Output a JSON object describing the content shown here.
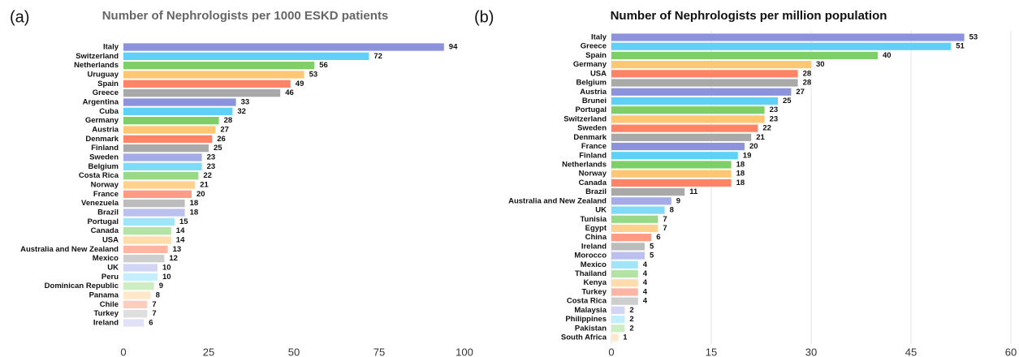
{
  "chart_data": [
    {
      "type": "hbar",
      "label": "(a)",
      "title": "Number of Nephrologists per 1000 ESKD patients",
      "categories": [
        "Italy",
        "Switzerland",
        "Netherlands",
        "Uruguay",
        "Spain",
        "Greece",
        "Argentina",
        "Cuba",
        "Germany",
        "Austria",
        "Denmark",
        "Finland",
        "Sweden",
        "Belgium",
        "Costa Rica",
        "Norway",
        "France",
        "Venezuela",
        "Brazil",
        "Portugal",
        "Canada",
        "USA",
        "Australia and New Zealand",
        "Mexico",
        "UK",
        "Peru",
        "Dominican Republic",
        "Panama",
        "Chile",
        "Turkey",
        "Ireland"
      ],
      "values": [
        94,
        72,
        56,
        53,
        49,
        46,
        33,
        32,
        28,
        27,
        26,
        25,
        23,
        23,
        22,
        21,
        20,
        18,
        18,
        15,
        14,
        14,
        13,
        12,
        10,
        10,
        9,
        8,
        7,
        7,
        6
      ],
      "colors": [
        "#8c93dc",
        "#5fd1f6",
        "#7fcf69",
        "#ffc773",
        "#ff8465",
        "#a9a9a9",
        "#8c93dc",
        "#5fd1f6",
        "#7fcf69",
        "#ffc773",
        "#ff8465",
        "#a9a9a9",
        "#a4abe6",
        "#7fdbf8",
        "#98d987",
        "#ffd18d",
        "#ff9c83",
        "#bcbcbc",
        "#bbc0ee",
        "#a1e5fa",
        "#b3e4a6",
        "#ffdcab",
        "#ffb5a2",
        "#cecece",
        "#d2d5f4",
        "#c3effc",
        "#cdeec3",
        "#ffe8c9",
        "#ffcdc0",
        "#dedede",
        "#dfe1f7"
      ],
      "xlim": [
        0,
        100
      ],
      "xticks": [
        0,
        25,
        50,
        75,
        100
      ],
      "grid": false
    },
    {
      "type": "hbar",
      "label": "(b)",
      "title": "Number of Nephrologists per million population",
      "categories": [
        "Italy",
        "Greece",
        "Spain",
        "Germany",
        "USA",
        "Belgium",
        "Austria",
        "Brunei",
        "Portugal",
        "Switzerland",
        "Sweden",
        "Denmark",
        "France",
        "Finland",
        "Netherlands",
        "Norway",
        "Canada",
        "Brazil",
        "Australia and New Zealand",
        "UK",
        "Tunisia",
        "Egypt",
        "China",
        "Ireland",
        "Morocco",
        "Mexico",
        "Thailand",
        "Kenya",
        "Turkey",
        "Costa Rica",
        "Malaysia",
        "Philippines",
        "Pakistan",
        "South Africa"
      ],
      "values": [
        53,
        51,
        40,
        30,
        28,
        28,
        27,
        25,
        23,
        23,
        22,
        21,
        20,
        19,
        18,
        18,
        18,
        11,
        9,
        8,
        7,
        7,
        6,
        5,
        5,
        4,
        4,
        4,
        4,
        4,
        2,
        2,
        2,
        1
      ],
      "colors": [
        "#8c93dc",
        "#5fd1f6",
        "#7fcf69",
        "#ffc773",
        "#ff8465",
        "#a9a9a9",
        "#8c93dc",
        "#5fd1f6",
        "#7fcf69",
        "#ffc773",
        "#ff8465",
        "#a9a9a9",
        "#8c93dc",
        "#5fd1f6",
        "#7fcf69",
        "#ffc773",
        "#ff8465",
        "#a9a9a9",
        "#a4abe6",
        "#7fdbf8",
        "#98d987",
        "#ffd18d",
        "#ff9c83",
        "#bcbcbc",
        "#bbc0ee",
        "#a1e5fa",
        "#b3e4a6",
        "#ffdcab",
        "#ffb5a2",
        "#cecece",
        "#d2d5f4",
        "#c3effc",
        "#cdeec3",
        "#ffe8c9"
      ],
      "xlim": [
        0,
        60
      ],
      "xticks": [
        0,
        15,
        30,
        45,
        60
      ],
      "grid": true
    }
  ]
}
